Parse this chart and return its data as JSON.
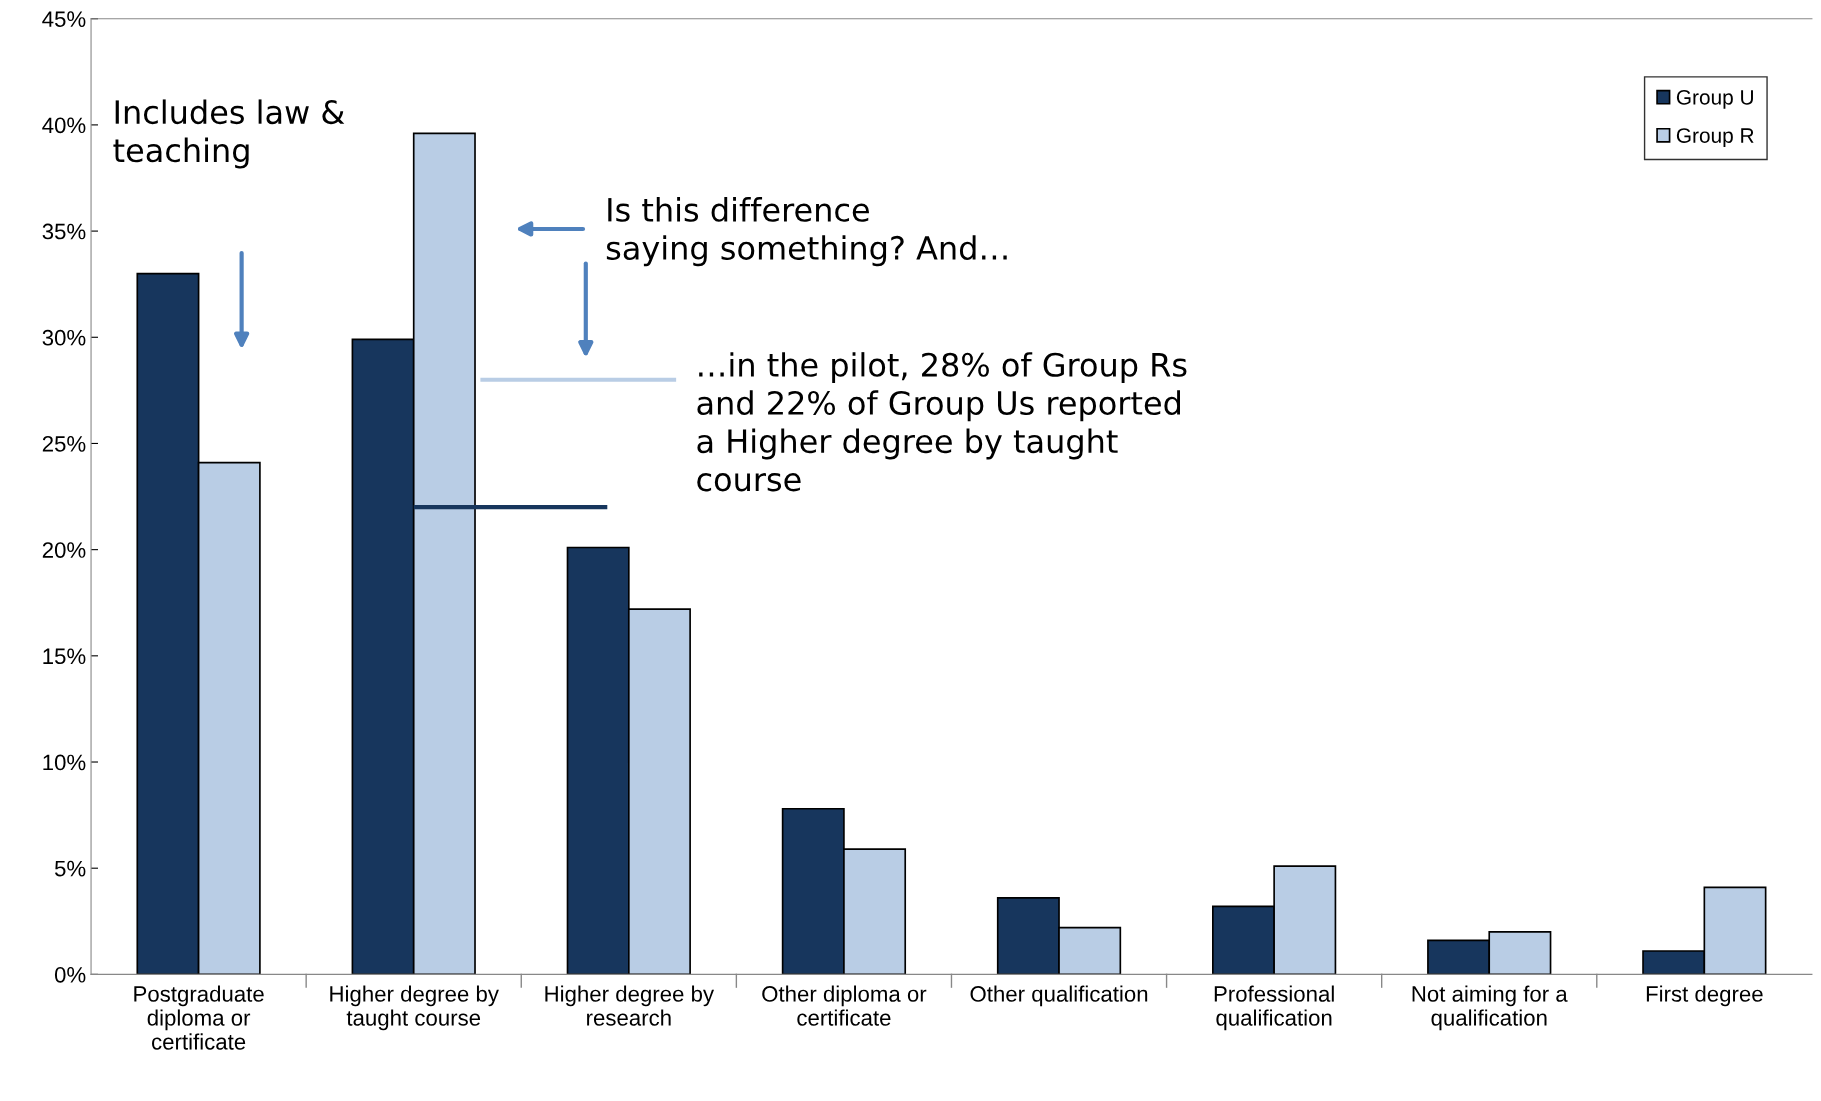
{
  "chart_data": {
    "type": "bar",
    "categories": [
      "Postgraduate\ndiploma or\ncertificate",
      "Higher degree by\ntaught course",
      "Higher degree by\nresearch",
      "Other diploma or\ncertificate",
      "Other qualification",
      "Professional\nqualification",
      "Not aiming for a\nqualification",
      "First degree"
    ],
    "series": [
      {
        "name": "Group U",
        "color": "#17365d",
        "values": [
          33.0,
          29.9,
          20.1,
          7.8,
          3.6,
          3.2,
          1.6,
          1.1
        ]
      },
      {
        "name": "Group R",
        "color": "#b9cde5",
        "values": [
          24.1,
          39.6,
          17.2,
          5.9,
          2.2,
          5.1,
          2.0,
          4.1
        ]
      }
    ],
    "ylim": [
      0,
      45
    ],
    "yticks": [
      {
        "value": 0,
        "label": "0%"
      },
      {
        "value": 5,
        "label": "5%"
      },
      {
        "value": 10,
        "label": "10%"
      },
      {
        "value": 15,
        "label": "15%"
      },
      {
        "value": 20,
        "label": "20%"
      },
      {
        "value": 25,
        "label": "25%"
      },
      {
        "value": 30,
        "label": "30%"
      },
      {
        "value": 35,
        "label": "35%"
      },
      {
        "value": 40,
        "label": "40%"
      },
      {
        "value": 45,
        "label": "45%"
      }
    ],
    "ref_lines": [
      {
        "axis": "y",
        "value": 28,
        "color": "#b9cde5"
      },
      {
        "axis": "y",
        "value": 22,
        "color": "#17365d"
      }
    ],
    "annotations": [
      "Includes law &\nteaching",
      "Is this difference\nsaying something? And…",
      "…in the pilot, 28% of Group Rs\nand 22% of Group Us reported\na Higher degree by taught\ncourse"
    ],
    "legend": "top right",
    "grid": false
  }
}
